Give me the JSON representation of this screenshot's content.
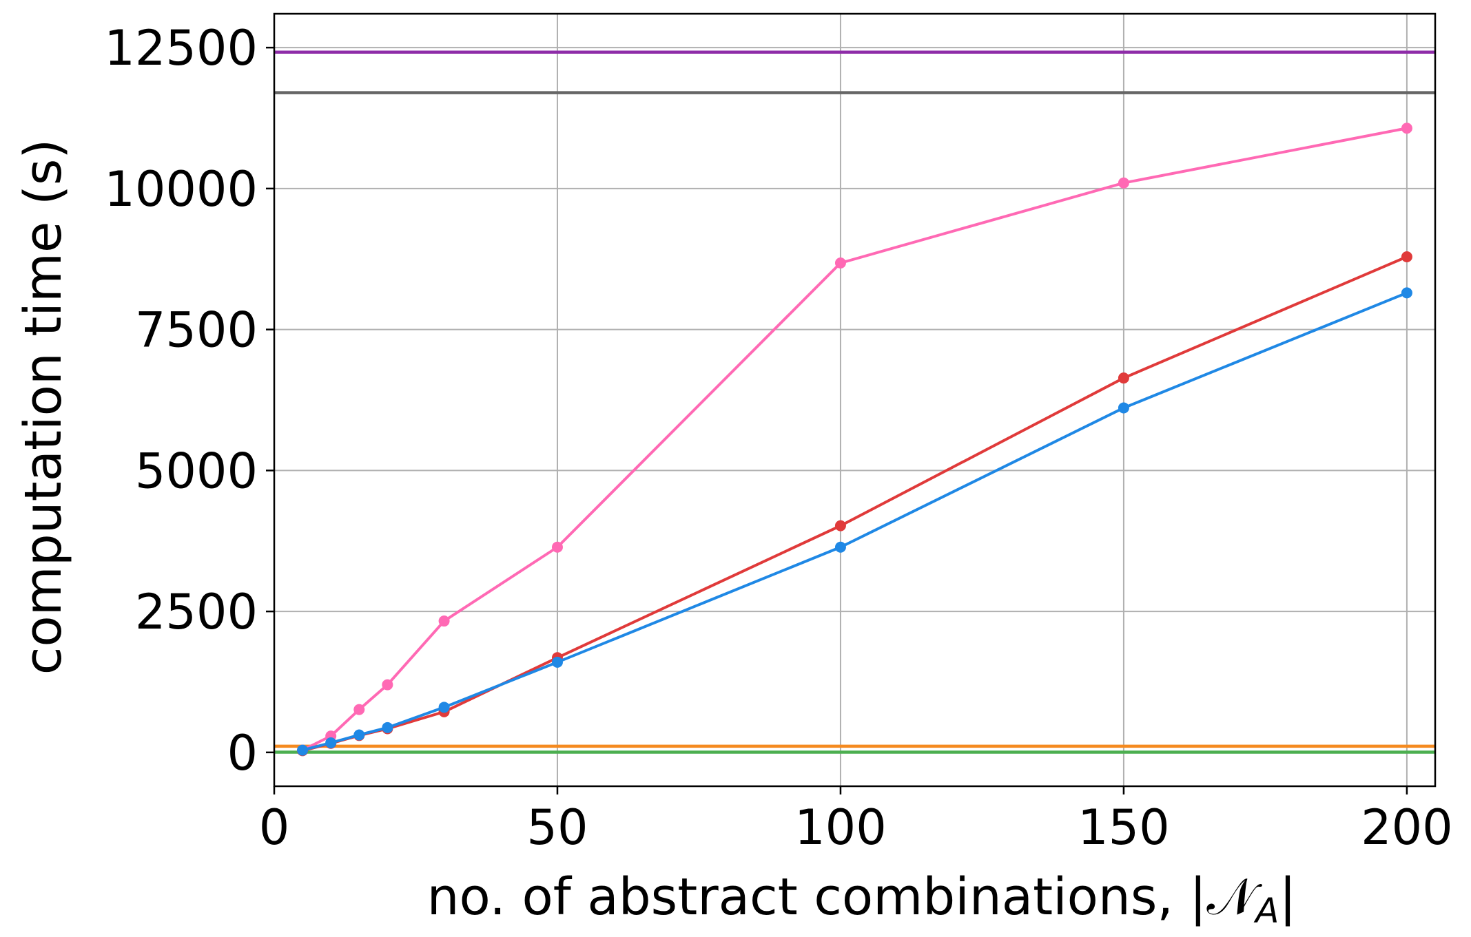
{
  "chart_data": {
    "type": "line",
    "xlabel": "no. of abstract combinations, |𝒩",
    "xlabel_subscript": "A",
    "xlabel_suffix": "|",
    "ylabel": "computation time (s)",
    "xlim": [
      0,
      205
    ],
    "ylim": [
      -600,
      13100
    ],
    "grid": true,
    "x_ticks": [
      0,
      50,
      100,
      150,
      200
    ],
    "x_tick_labels": [
      "0",
      "50",
      "100",
      "150",
      "200"
    ],
    "y_ticks": [
      0,
      2500,
      5000,
      7500,
      10000,
      12500
    ],
    "y_tick_labels": [
      "0",
      "2500",
      "5000",
      "7500",
      "10000",
      "12500"
    ],
    "series": [
      {
        "color": "#ff69b4",
        "style": "line-marker",
        "x": [
          5,
          10,
          15,
          20,
          30,
          50,
          100,
          150,
          200
        ],
        "y": [
          40,
          290,
          760,
          1200,
          2330,
          3640,
          8680,
          10100,
          11070
        ]
      },
      {
        "color": "#e03a3a",
        "style": "line-marker",
        "x": [
          5,
          10,
          15,
          20,
          30,
          50,
          100,
          150,
          200
        ],
        "y": [
          30,
          160,
          300,
          420,
          720,
          1680,
          4020,
          6640,
          8790
        ]
      },
      {
        "color": "#1f88e5",
        "style": "line-marker",
        "x": [
          5,
          10,
          15,
          20,
          30,
          50,
          100,
          150,
          200
        ],
        "y": [
          40,
          170,
          310,
          440,
          800,
          1600,
          3640,
          6110,
          8150
        ]
      },
      {
        "color": "#8e2ca8",
        "style": "hline",
        "y": 12420
      },
      {
        "color": "#666666",
        "style": "hline",
        "y": 11700
      },
      {
        "color": "#f58a1f",
        "style": "hline",
        "y": 110
      },
      {
        "color": "#4caf50",
        "style": "hline",
        "y": 5
      }
    ]
  }
}
